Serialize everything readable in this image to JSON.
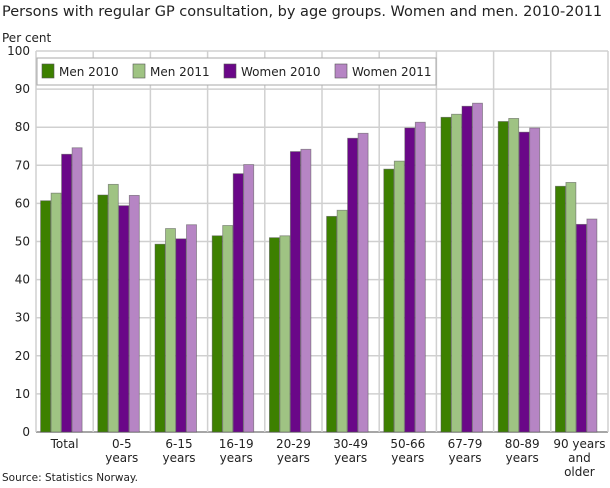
{
  "chart_data": {
    "type": "bar",
    "title": "Persons with regular GP consultation, by age groups. Women and men. 2010-2011",
    "ylabel": "Per cent",
    "xlabel": "",
    "source": "Source: Statistics Norway.",
    "ylim": [
      0,
      100
    ],
    "yticks": [
      0,
      10,
      20,
      30,
      40,
      50,
      60,
      70,
      80,
      90,
      100
    ],
    "grid": true,
    "legend": "top-left",
    "categories": [
      "Total",
      "0-5 years",
      "6-15 years",
      "16-19 years",
      "20-29 years",
      "30-49 years",
      "50-66 years",
      "67-79 years",
      "80-89 years",
      "90 years and older"
    ],
    "category_lines": [
      [
        "Total"
      ],
      [
        "0-5",
        "years"
      ],
      [
        "6-15",
        "years"
      ],
      [
        "16-19",
        "years"
      ],
      [
        "20-29",
        "years"
      ],
      [
        "30-49",
        "years"
      ],
      [
        "50-66",
        "years"
      ],
      [
        "67-79",
        "years"
      ],
      [
        "80-89",
        "years"
      ],
      [
        "90 years",
        "and",
        "older"
      ]
    ],
    "series": [
      {
        "name": "Men 2010",
        "color": "#3d8000",
        "values": [
          60.7,
          62.2,
          49.3,
          51.5,
          51.0,
          56.6,
          69.0,
          82.6,
          81.5,
          64.5
        ]
      },
      {
        "name": "Men 2011",
        "color": "#9fc383",
        "values": [
          62.7,
          65.0,
          53.4,
          54.2,
          51.5,
          58.2,
          71.1,
          83.4,
          82.3,
          65.5
        ]
      },
      {
        "name": "Women 2010",
        "color": "#6a0788",
        "values": [
          72.9,
          59.4,
          50.7,
          67.8,
          73.6,
          77.1,
          79.8,
          85.5,
          78.7,
          54.5
        ]
      },
      {
        "name": "Women 2011",
        "color": "#b685c4",
        "values": [
          74.6,
          62.1,
          54.4,
          70.2,
          74.2,
          78.4,
          81.3,
          86.3,
          79.8,
          55.9
        ]
      }
    ]
  }
}
